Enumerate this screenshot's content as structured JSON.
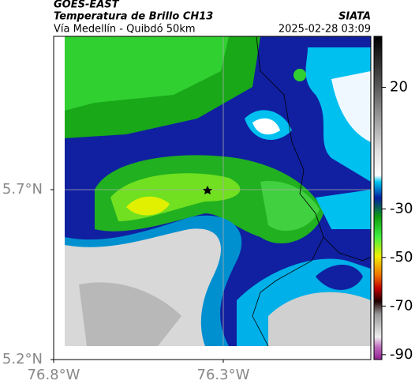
{
  "header": {
    "title": "GOES-EAST",
    "subtitle": "Temperatura de Brillo CH13",
    "location": "Vía Medellín - Quibdó 50km",
    "source": "SIATA",
    "datetime": "2025-02-28 03:09"
  },
  "map": {
    "xlim": [
      -76.8,
      -75.865
    ],
    "ylim": [
      5.2,
      6.151
    ],
    "xticks": [
      {
        "value": -76.8,
        "label": "76.8°W"
      },
      {
        "value": -76.3,
        "label": "76.3°W"
      }
    ],
    "yticks": [
      {
        "value": 5.7,
        "label": "5.7°N"
      },
      {
        "value": 5.2,
        "label": "5.2°N"
      }
    ]
  },
  "colorbar": {
    "lim": [
      -92,
      41
    ],
    "ticks": [
      20,
      -30,
      -50,
      -70,
      -90
    ]
  }
}
